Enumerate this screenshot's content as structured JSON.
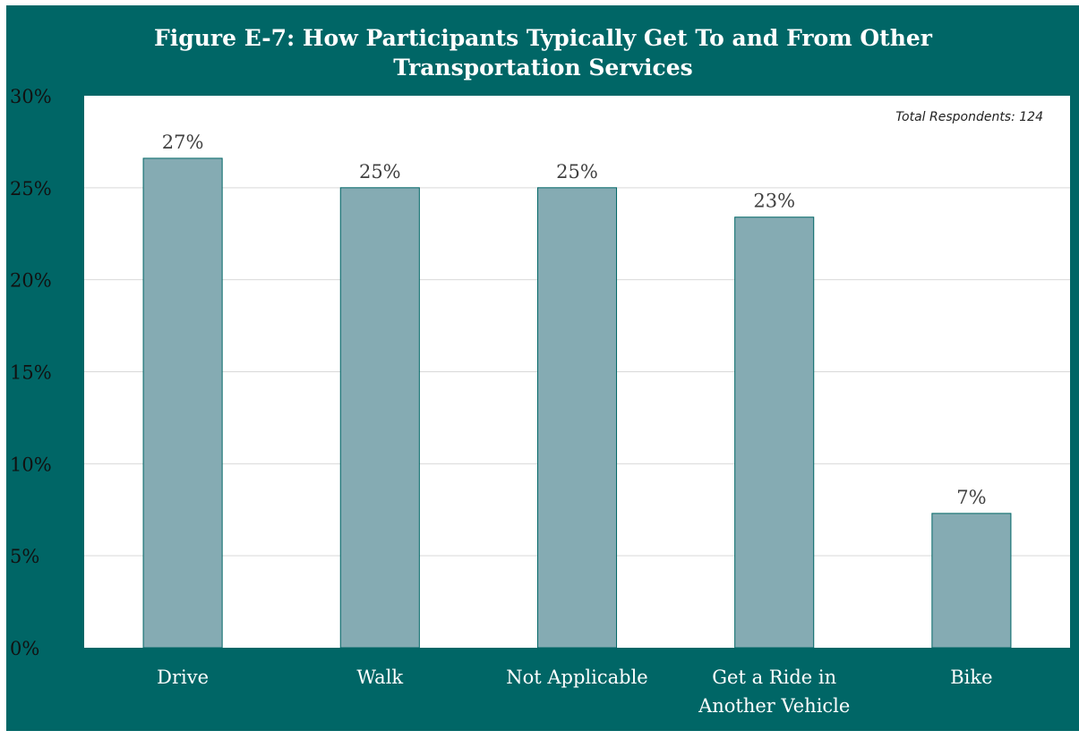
{
  "chart_data": {
    "type": "bar",
    "title_lines": [
      "Figure E-7: How Participants Typically Get To and From Other",
      "Transportation Services"
    ],
    "annotation": "Total Respondents: 124",
    "categories": [
      [
        "Drive"
      ],
      [
        "Walk"
      ],
      [
        "Not Applicable"
      ],
      [
        "Get a Ride in",
        "Another Vehicle"
      ],
      [
        "Bike"
      ]
    ],
    "values": [
      26.6,
      25.0,
      25.0,
      23.4,
      7.3
    ],
    "data_labels": [
      "27%",
      "25%",
      "25%",
      "23%",
      "7%"
    ],
    "ylim": [
      0,
      30
    ],
    "yticks": [
      0,
      5,
      10,
      15,
      20,
      25,
      30
    ],
    "ytick_labels": [
      "0%",
      "5%",
      "10%",
      "15%",
      "20%",
      "25%",
      "30%"
    ],
    "grid": true,
    "colors": {
      "frame": "#006666",
      "plot_background": "#ffffff",
      "bar_fill": "#85abb3",
      "bar_stroke": "#006666",
      "gridline": "#d9d9d9"
    }
  }
}
